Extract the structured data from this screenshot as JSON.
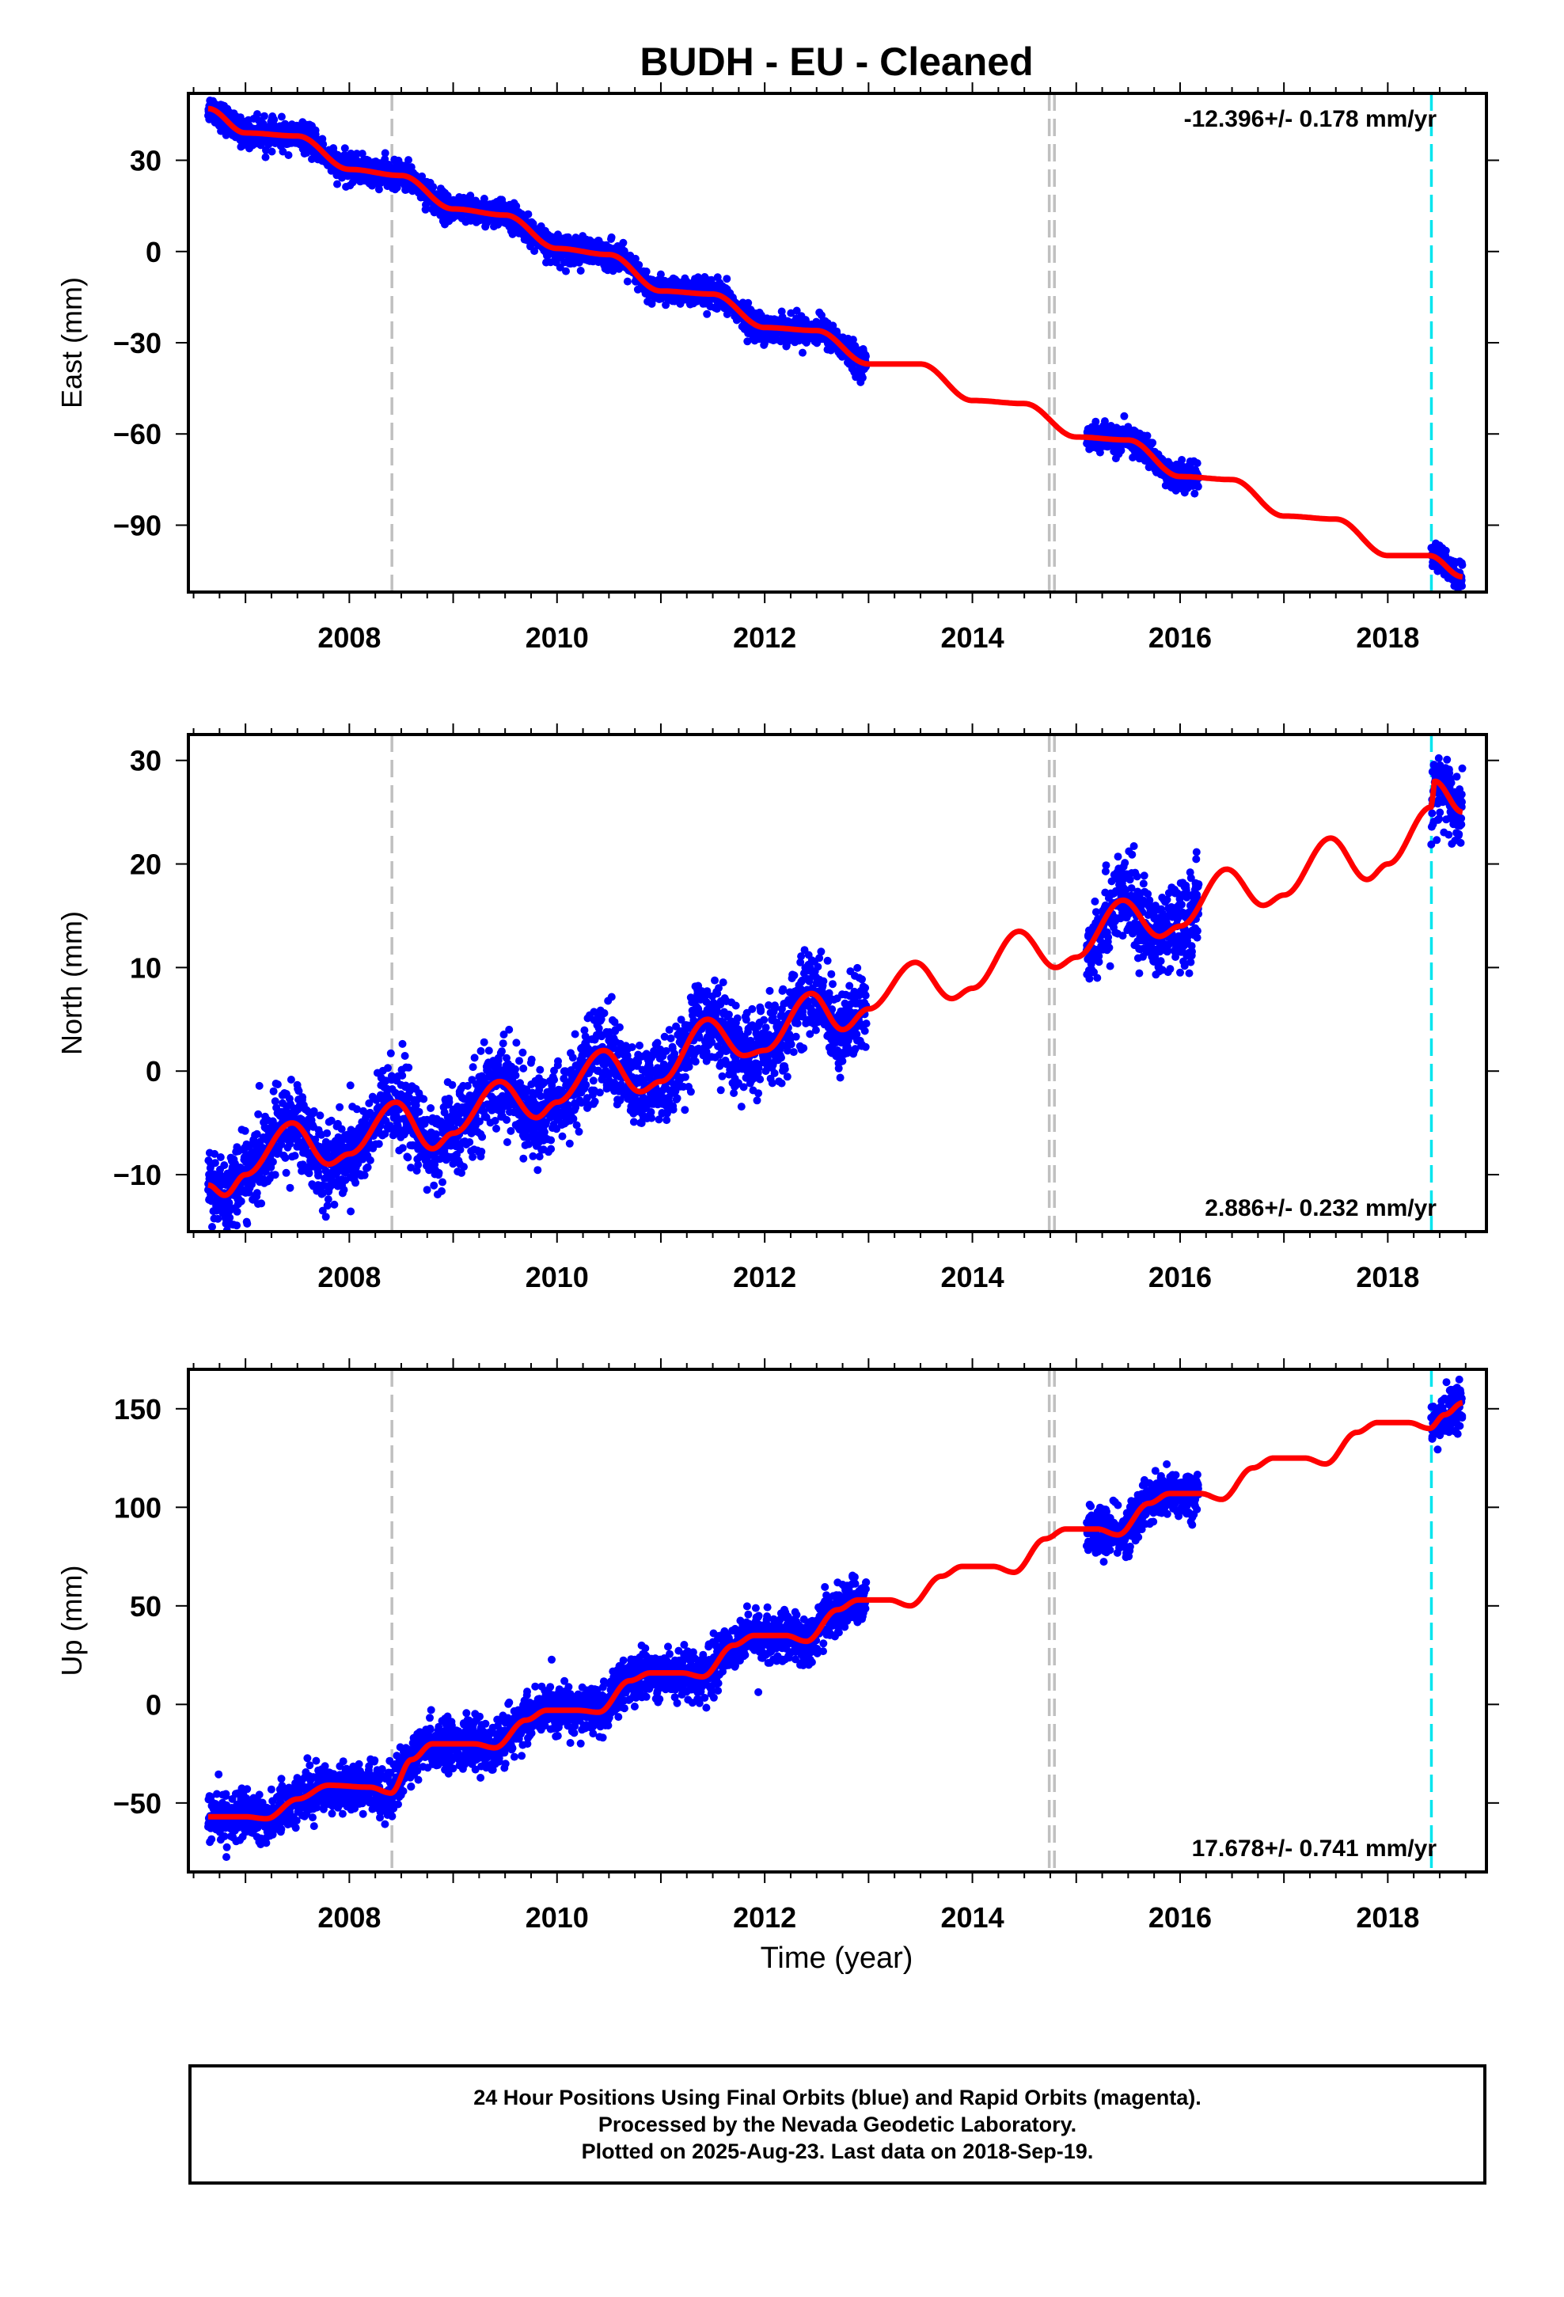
{
  "title": "BUDH  - EU - Cleaned",
  "xlabel": "Time (year)",
  "x_ticks": [
    "2008",
    "2010",
    "2012",
    "2014",
    "2016",
    "2018"
  ],
  "footer": [
    "24 Hour Positions Using Final Orbits (blue) and Rapid Orbits (magenta).",
    "Processed by the Nevada Geodetic Laboratory.",
    "Plotted on 2025-Aug-23. Last data on 2018-Sep-19."
  ],
  "colors": {
    "data": "#0000ff",
    "model": "#ff0000",
    "gray_line": "#c0c0c0",
    "cyan_line": "#00e5ee"
  },
  "chart_data": [
    {
      "type": "scatter",
      "component": "east",
      "ylabel": "East (mm)",
      "rate_label": "-12.396+/- 0.178 mm/yr",
      "rate_position": "top-right",
      "xlim": [
        2006.45,
        2018.95
      ],
      "ylim": [
        -112,
        52
      ],
      "yticks": [
        30,
        0,
        -30,
        -60,
        -90
      ],
      "vlines": [
        {
          "x": 2008.41,
          "color": "gray"
        },
        {
          "x": 2014.74,
          "color": "gray"
        },
        {
          "x": 2014.79,
          "color": "gray"
        },
        {
          "x": 2018.42,
          "color": "cyan"
        }
      ],
      "data_segments": [
        [
          2006.64,
          2012.98
        ],
        [
          2015.1,
          2016.18
        ],
        [
          2018.42,
          2018.72
        ]
      ],
      "series": [
        {
          "name": "model",
          "trend": {
            "t0": 2006.64,
            "y0": 45,
            "rate": -12.396
          },
          "seasonal": {
            "amp": 2.5,
            "phase": 0.4
          },
          "points": [
            [
              2006.64,
              47
            ],
            [
              2007.0,
              39
            ],
            [
              2007.5,
              38
            ],
            [
              2008.0,
              27
            ],
            [
              2008.5,
              25
            ],
            [
              2009.0,
              14
            ],
            [
              2009.5,
              12
            ],
            [
              2010.0,
              1
            ],
            [
              2010.5,
              -1
            ],
            [
              2011.0,
              -13
            ],
            [
              2011.5,
              -14
            ],
            [
              2012.0,
              -25
            ],
            [
              2012.5,
              -26
            ],
            [
              2013.0,
              -37
            ],
            [
              2013.5,
              -37
            ],
            [
              2014.0,
              -49
            ],
            [
              2014.5,
              -50
            ],
            [
              2015.0,
              -61
            ],
            [
              2015.5,
              -62
            ],
            [
              2016.0,
              -74
            ],
            [
              2016.5,
              -75
            ],
            [
              2017.0,
              -87
            ],
            [
              2017.5,
              -88
            ],
            [
              2018.0,
              -100
            ],
            [
              2018.4,
              -100
            ],
            [
              2018.72,
              -107
            ]
          ],
          "noise": 2.2
        }
      ]
    },
    {
      "type": "scatter",
      "component": "north",
      "ylabel": "North (mm)",
      "rate_label": "2.886+/- 0.232 mm/yr",
      "rate_position": "bottom-right",
      "xlim": [
        2006.45,
        2018.95
      ],
      "ylim": [
        -15.5,
        32.5
      ],
      "yticks": [
        30,
        20,
        10,
        0,
        -10
      ],
      "vlines": [
        {
          "x": 2008.41,
          "color": "gray"
        },
        {
          "x": 2014.74,
          "color": "gray"
        },
        {
          "x": 2014.79,
          "color": "gray"
        },
        {
          "x": 2018.42,
          "color": "cyan"
        }
      ],
      "data_segments": [
        [
          2006.64,
          2012.98
        ],
        [
          2015.1,
          2016.18
        ],
        [
          2018.42,
          2018.72
        ]
      ],
      "series": [
        {
          "name": "model",
          "points": [
            [
              2006.64,
              -11
            ],
            [
              2006.8,
              -12
            ],
            [
              2007.0,
              -10
            ],
            [
              2007.45,
              -5
            ],
            [
              2007.8,
              -9
            ],
            [
              2008.0,
              -8
            ],
            [
              2008.45,
              -3
            ],
            [
              2008.8,
              -7.5
            ],
            [
              2009.0,
              -6
            ],
            [
              2009.45,
              -1
            ],
            [
              2009.8,
              -4.5
            ],
            [
              2010.0,
              -3
            ],
            [
              2010.45,
              2
            ],
            [
              2010.8,
              -2
            ],
            [
              2011.0,
              -1
            ],
            [
              2011.45,
              5
            ],
            [
              2011.8,
              1.5
            ],
            [
              2012.0,
              2
            ],
            [
              2012.45,
              7.5
            ],
            [
              2012.75,
              4
            ],
            [
              2013.0,
              6
            ],
            [
              2013.45,
              10.5
            ],
            [
              2013.8,
              7
            ],
            [
              2014.0,
              8
            ],
            [
              2014.45,
              13.5
            ],
            [
              2014.8,
              10
            ],
            [
              2015.0,
              11
            ],
            [
              2015.45,
              16.5
            ],
            [
              2015.8,
              13
            ],
            [
              2016.0,
              14
            ],
            [
              2016.45,
              19.5
            ],
            [
              2016.8,
              16
            ],
            [
              2017.0,
              17
            ],
            [
              2017.45,
              22.5
            ],
            [
              2017.8,
              18.5
            ],
            [
              2018.0,
              20
            ],
            [
              2018.42,
              25.5
            ],
            [
              2018.45,
              28
            ],
            [
              2018.72,
              25
            ]
          ],
          "noise": 2.0
        }
      ]
    },
    {
      "type": "scatter",
      "component": "up",
      "ylabel": "Up (mm)",
      "rate_label": "17.678+/- 0.741 mm/yr",
      "rate_position": "bottom-right",
      "xlim": [
        2006.45,
        2018.95
      ],
      "ylim": [
        -85,
        170
      ],
      "yticks": [
        150,
        100,
        50,
        0,
        -50
      ],
      "vlines": [
        {
          "x": 2008.41,
          "color": "gray"
        },
        {
          "x": 2014.74,
          "color": "gray"
        },
        {
          "x": 2014.79,
          "color": "gray"
        },
        {
          "x": 2018.42,
          "color": "cyan"
        }
      ],
      "data_segments": [
        [
          2006.64,
          2012.98
        ],
        [
          2015.1,
          2016.18
        ],
        [
          2018.42,
          2018.72
        ]
      ],
      "series": [
        {
          "name": "model",
          "points": [
            [
              2006.64,
              -57
            ],
            [
              2007.0,
              -57
            ],
            [
              2007.2,
              -58
            ],
            [
              2007.5,
              -48
            ],
            [
              2007.8,
              -41
            ],
            [
              2008.2,
              -42
            ],
            [
              2008.4,
              -45
            ],
            [
              2008.6,
              -28
            ],
            [
              2008.8,
              -20
            ],
            [
              2009.2,
              -20
            ],
            [
              2009.4,
              -22
            ],
            [
              2009.7,
              -8
            ],
            [
              2009.9,
              -3
            ],
            [
              2010.2,
              -3
            ],
            [
              2010.4,
              -4
            ],
            [
              2010.7,
              12
            ],
            [
              2010.9,
              16
            ],
            [
              2011.2,
              16
            ],
            [
              2011.4,
              14
            ],
            [
              2011.7,
              30
            ],
            [
              2011.9,
              35
            ],
            [
              2012.2,
              35
            ],
            [
              2012.4,
              32
            ],
            [
              2012.7,
              48
            ],
            [
              2012.9,
              53
            ],
            [
              2013.2,
              53
            ],
            [
              2013.4,
              50
            ],
            [
              2013.7,
              65
            ],
            [
              2013.9,
              70
            ],
            [
              2014.2,
              70
            ],
            [
              2014.4,
              67
            ],
            [
              2014.7,
              84
            ],
            [
              2014.9,
              89
            ],
            [
              2015.2,
              89
            ],
            [
              2015.4,
              86
            ],
            [
              2015.7,
              102
            ],
            [
              2015.9,
              107
            ],
            [
              2016.2,
              107
            ],
            [
              2016.4,
              104
            ],
            [
              2016.7,
              120
            ],
            [
              2016.9,
              125
            ],
            [
              2017.2,
              125
            ],
            [
              2017.4,
              122
            ],
            [
              2017.7,
              138
            ],
            [
              2017.9,
              143
            ],
            [
              2018.2,
              143
            ],
            [
              2018.4,
              140
            ],
            [
              2018.55,
              147
            ],
            [
              2018.72,
              153
            ]
          ],
          "noise": 6.0
        }
      ]
    }
  ]
}
